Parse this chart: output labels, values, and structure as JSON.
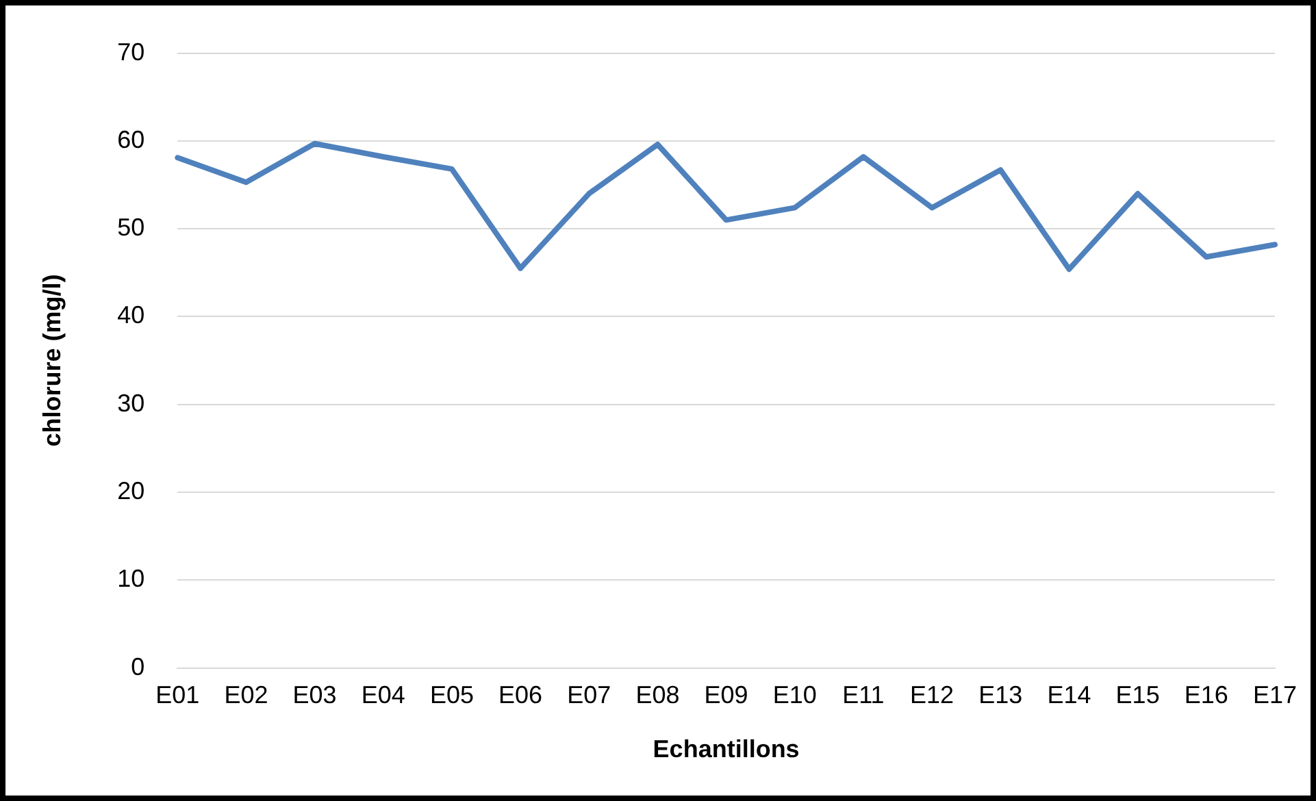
{
  "chart_data": {
    "type": "line",
    "xlabel": "Echantillons",
    "ylabel": "chlorure (mg/l)",
    "categories": [
      "E01",
      "E02",
      "E03",
      "E04",
      "E05",
      "E06",
      "E07",
      "E08",
      "E09",
      "E10",
      "E11",
      "E12",
      "E13",
      "E14",
      "E15",
      "E16",
      "E17"
    ],
    "series": [
      {
        "color": "#4f81bd",
        "values": [
          58.1,
          55.3,
          59.7,
          58.2,
          56.8,
          45.5,
          54,
          59.6,
          51,
          52.4,
          58.2,
          52.4,
          56.7,
          45.4,
          54,
          46.8,
          48.2
        ]
      }
    ],
    "ylim": [
      0,
      70
    ],
    "yticks": [
      0,
      10,
      20,
      30,
      40,
      50,
      60,
      70
    ],
    "grid": "y",
    "legend": false,
    "marker": "none",
    "line_style": "solid"
  }
}
